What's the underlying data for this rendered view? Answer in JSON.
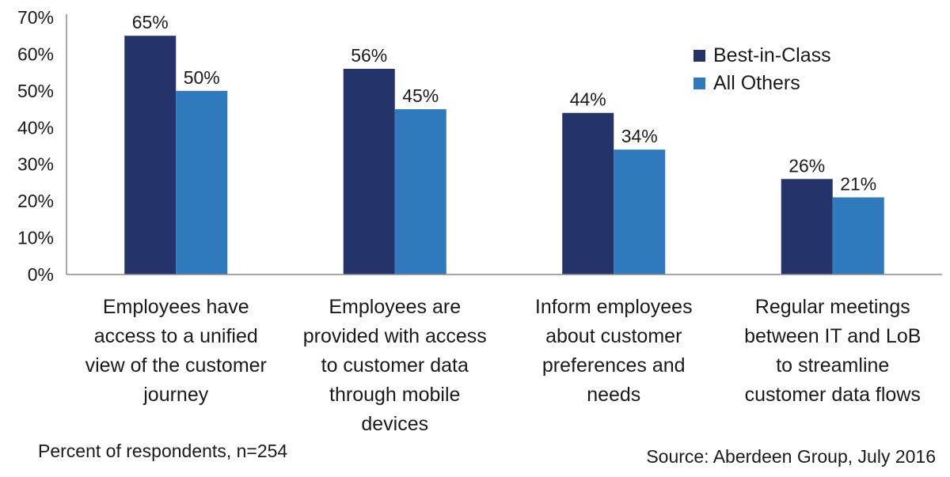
{
  "chart_data": {
    "type": "bar",
    "title": "",
    "xlabel": "",
    "ylabel": "",
    "ylim": [
      0,
      70
    ],
    "y_ticks": [
      0,
      10,
      20,
      30,
      40,
      50,
      60,
      70
    ],
    "y_tick_labels": [
      "0%",
      "10%",
      "20%",
      "30%",
      "40%",
      "50%",
      "60%",
      "70%"
    ],
    "grid": false,
    "legend_position": "top-right",
    "categories": [
      [
        "Employees have",
        "access to a unified",
        "view of the customer",
        "journey"
      ],
      [
        "Employees are",
        "provided with access",
        "to customer data",
        "through mobile",
        "devices"
      ],
      [
        "Inform employees",
        "about customer",
        "preferences and",
        "needs"
      ],
      [
        "Regular meetings",
        "between IT and LoB",
        "to streamline",
        "customer data flows"
      ]
    ],
    "series": [
      {
        "name": "Best-in-Class",
        "color": "#24346a",
        "values": [
          65,
          56,
          44,
          26
        ],
        "labels": [
          "65%",
          "56%",
          "44%",
          "26%"
        ]
      },
      {
        "name": "All Others",
        "color": "#2e7abd",
        "values": [
          50,
          45,
          34,
          21
        ],
        "labels": [
          "50%",
          "45%",
          "34%",
          "21%"
        ]
      }
    ]
  },
  "notes": {
    "respondents": "Percent of respondents, n=254",
    "source": "Source: Aberdeen Group, July 2016"
  }
}
